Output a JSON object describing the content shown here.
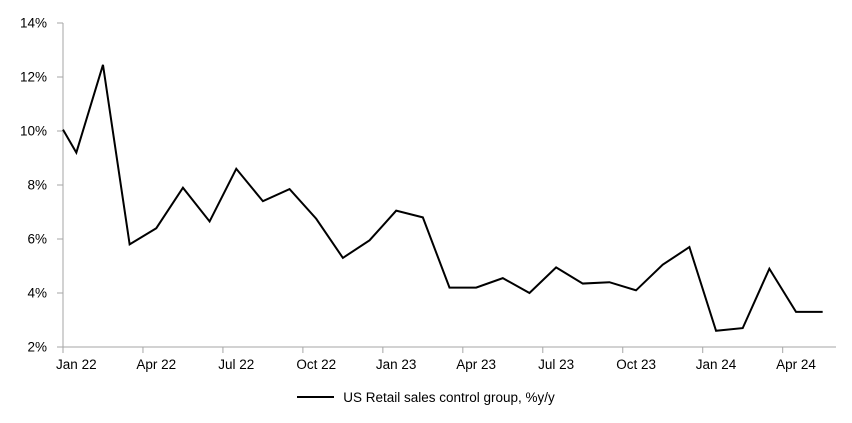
{
  "chart_data": {
    "type": "line",
    "title": "",
    "background_color": "#ffffff",
    "axis_color": "#a6a6a6",
    "text_color": "#000000",
    "gridlines": false,
    "x": [
      "Jan 22",
      "Feb 22",
      "Mar 22",
      "Apr 22",
      "May 22",
      "Jun 22",
      "Jul 22",
      "Aug 22",
      "Sep 22",
      "Oct 22",
      "Nov 22",
      "Dec 22",
      "Jan 23",
      "Feb 23",
      "Mar 23",
      "Apr 23",
      "May 23",
      "Jun 23",
      "Jul 23",
      "Aug 23",
      "Sep 23",
      "Oct 23",
      "Nov 23",
      "Dec 23",
      "Jan 24",
      "Feb 24",
      "Mar 24",
      "Apr 24",
      "May 24"
    ],
    "series": [
      {
        "name": "US Retail sales control group, %y/y",
        "color": "#000000",
        "line_width": 2,
        "values": [
          9.2,
          12.45,
          5.8,
          6.4,
          7.9,
          6.65,
          8.6,
          7.4,
          7.85,
          6.75,
          5.3,
          5.95,
          7.05,
          6.8,
          4.2,
          4.2,
          4.55,
          4.0,
          4.95,
          4.35,
          4.4,
          4.1,
          5.05,
          5.7,
          2.6,
          2.7,
          4.9,
          3.3,
          3.3
        ]
      }
    ],
    "clipped_start_value": 10.05,
    "y_axis": {
      "min": 2,
      "max": 14,
      "step": 2,
      "tick_labels": [
        "2%",
        "4%",
        "6%",
        "8%",
        "10%",
        "12%",
        "14%"
      ],
      "label_suffix": "%"
    },
    "x_axis": {
      "tick_labels": [
        "Jan 22",
        "Apr 22",
        "Jul 22",
        "Oct 22",
        "Jan 23",
        "Apr 23",
        "Jul 23",
        "Oct 23",
        "Jan 24",
        "Apr 24"
      ],
      "label_every": 3
    },
    "legend": {
      "label": "US Retail sales control group, %y/y",
      "position": "bottom-center"
    }
  }
}
